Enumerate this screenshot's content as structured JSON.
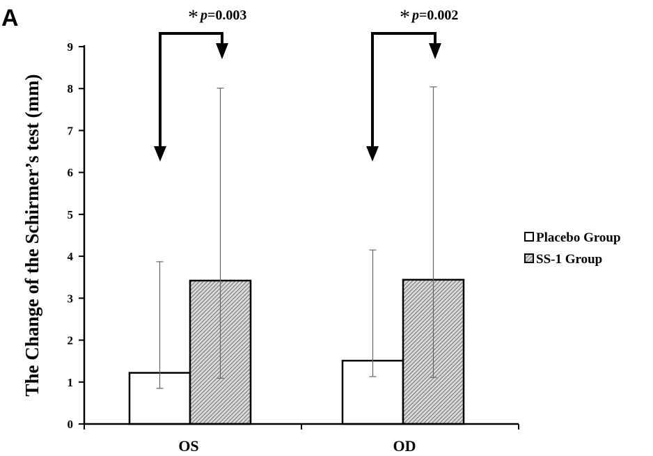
{
  "panel_label": "A",
  "chart_data": {
    "type": "bar",
    "categories": [
      "OS",
      "OD"
    ],
    "series": [
      {
        "name": "Placebo Group",
        "values": [
          1.22,
          1.51
        ],
        "error_low": [
          0.85,
          1.13
        ],
        "error_high": [
          3.87,
          4.15
        ],
        "fill": "#ffffff"
      },
      {
        "name": "SS-1 Group",
        "values": [
          3.42,
          3.44
        ],
        "error_low": [
          1.09,
          1.11
        ],
        "error_high": [
          8.01,
          8.04
        ],
        "fill": "hatched"
      }
    ],
    "ylabel": "The Change of the Schirmer’s test (mm)",
    "xlabel": "",
    "ylim": [
      0,
      9
    ],
    "yticks": [
      "0",
      "1",
      "2",
      "3",
      "4",
      "5",
      "6",
      "7",
      "8",
      "9"
    ],
    "grid": false,
    "legend_position": "right",
    "annotations": [
      {
        "star": "*",
        "p_italic": "p",
        "p_value": "=0.003"
      },
      {
        "star": "*",
        "p_italic": "p",
        "p_value": "=0.002"
      }
    ]
  }
}
